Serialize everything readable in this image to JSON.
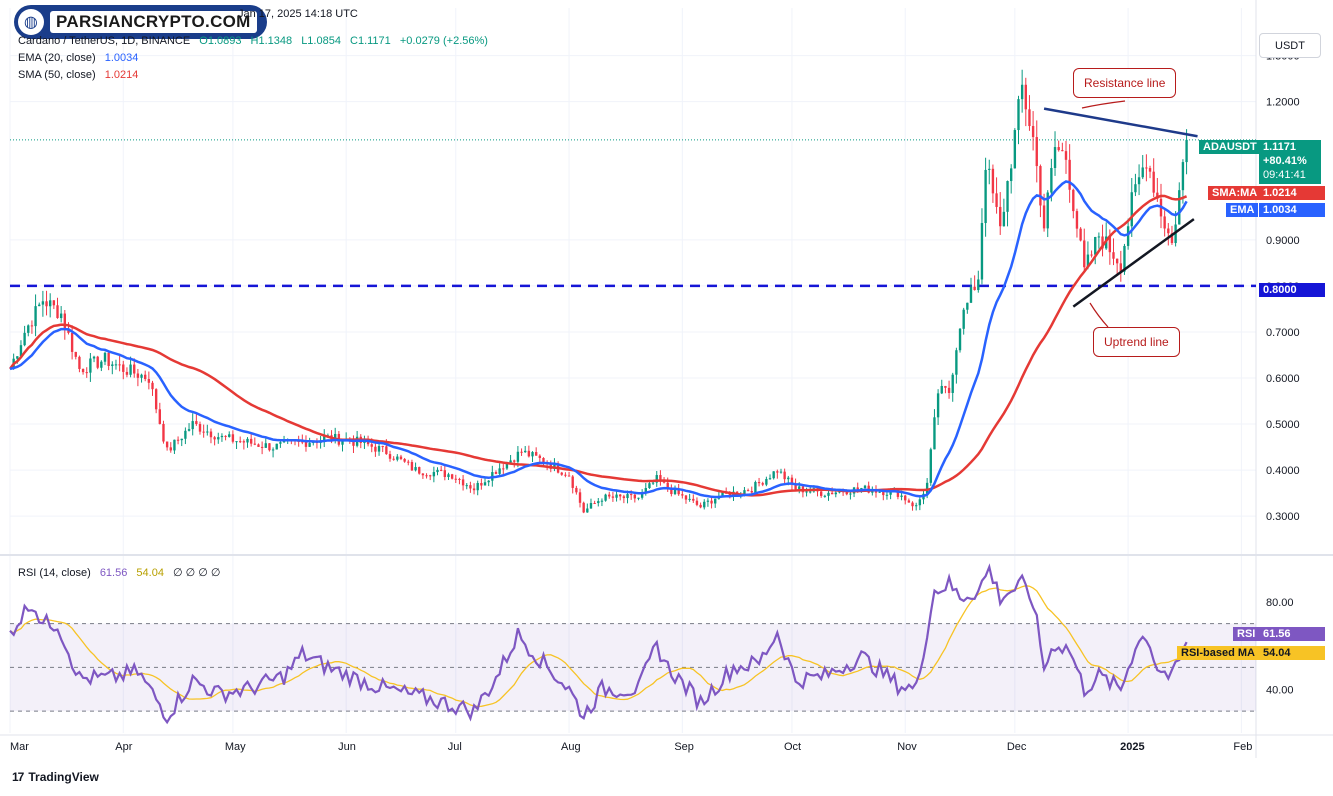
{
  "header": {
    "date_line": "Jan 17, 2025 14:18 UTC",
    "symbol_line": "Cardano / TetherUS, 1D, BINANCE",
    "open": "O1.0893",
    "high": "H1.1348",
    "low": "L1.0854",
    "close": "C1.1171",
    "change": "+0.0279 (+2.56%)",
    "ema_label": "EMA (20, close)",
    "ema_value": "1.0034",
    "sma_label": "SMA (50, close)",
    "sma_value": "1.0214",
    "rsi_label": "RSI (14, close)",
    "rsi_value": "61.56",
    "rsi_ma_value": "54.04",
    "rsi_extra": "∅ ∅ ∅ ∅"
  },
  "logo": {
    "text": "PARSIANCRYPTO.COM"
  },
  "footer": {
    "brand": "TradingView"
  },
  "scale": {
    "currency": "USDT"
  },
  "annotations": {
    "resistance": "Resistance line",
    "uptrend": "Uptrend line"
  },
  "price_tags": {
    "symbol": "ADAUSDT",
    "last": "1.1171",
    "change": "+80.41%",
    "countdown": "09:41:41",
    "sma_label": "SMA:MA",
    "sma_value": "1.0214",
    "ema_label": "EMA",
    "ema_value": "1.0034",
    "support": "0.8000",
    "rsi_label": "RSI",
    "rsi_value": "61.56",
    "rsi_ma_label": "RSI-based MA",
    "rsi_ma_value": "54.04"
  },
  "colors": {
    "up": "#089981",
    "down": "#f23645",
    "ema": "#2962ff",
    "sma": "#e53935",
    "rsi": "#7e57c2",
    "rsi_ma": "#f7c325",
    "support": "#1515d6",
    "trendline": "#1e3a8a",
    "annotation": "#b71c1c"
  },
  "chart_data": [
    {
      "type": "candlestick",
      "title": "Cardano / TetherUS, 1D, BINANCE",
      "ylim": [
        0.22,
        1.36
      ],
      "y_ticks": [
        "1.3000",
        "1.2000",
        "0.9000",
        "0.8000",
        "0.7000",
        "0.6000",
        "0.5000",
        "0.4000",
        "0.3000"
      ],
      "x_ticks": [
        "Mar",
        "Apr",
        "May",
        "Jun",
        "Jul",
        "Aug",
        "Sep",
        "Oct",
        "Nov",
        "Dec",
        "2025",
        "Feb"
      ],
      "close_anchors": [
        [
          "2024-03-01",
          0.62
        ],
        [
          "2024-03-05",
          0.7
        ],
        [
          "2024-03-10",
          0.77
        ],
        [
          "2024-03-15",
          0.74
        ],
        [
          "2024-03-20",
          0.62
        ],
        [
          "2024-03-27",
          0.64
        ],
        [
          "2024-04-01",
          0.62
        ],
        [
          "2024-04-08",
          0.6
        ],
        [
          "2024-04-13",
          0.44
        ],
        [
          "2024-04-20",
          0.5
        ],
        [
          "2024-04-28",
          0.47
        ],
        [
          "2024-05-05",
          0.46
        ],
        [
          "2024-05-12",
          0.45
        ],
        [
          "2024-05-20",
          0.46
        ],
        [
          "2024-05-27",
          0.47
        ],
        [
          "2024-06-05",
          0.46
        ],
        [
          "2024-06-12",
          0.44
        ],
        [
          "2024-06-20",
          0.4
        ],
        [
          "2024-06-30",
          0.39
        ],
        [
          "2024-07-06",
          0.36
        ],
        [
          "2024-07-12",
          0.4
        ],
        [
          "2024-07-19",
          0.44
        ],
        [
          "2024-07-25",
          0.42
        ],
        [
          "2024-08-01",
          0.39
        ],
        [
          "2024-08-05",
          0.31
        ],
        [
          "2024-08-10",
          0.34
        ],
        [
          "2024-08-20",
          0.34
        ],
        [
          "2024-08-25",
          0.38
        ],
        [
          "2024-08-28",
          0.36
        ],
        [
          "2024-09-06",
          0.32
        ],
        [
          "2024-09-10",
          0.34
        ],
        [
          "2024-09-20",
          0.36
        ],
        [
          "2024-09-27",
          0.4
        ],
        [
          "2024-10-02",
          0.36
        ],
        [
          "2024-10-10",
          0.35
        ],
        [
          "2024-10-20",
          0.36
        ],
        [
          "2024-10-30",
          0.35
        ],
        [
          "2024-11-04",
          0.32
        ],
        [
          "2024-11-07",
          0.37
        ],
        [
          "2024-11-10",
          0.57
        ],
        [
          "2024-11-13",
          0.57
        ],
        [
          "2024-11-16",
          0.72
        ],
        [
          "2024-11-21",
          0.82
        ],
        [
          "2024-11-23",
          1.07
        ],
        [
          "2024-11-27",
          0.92
        ],
        [
          "2024-12-03",
          1.23
        ],
        [
          "2024-12-06",
          1.12
        ],
        [
          "2024-12-09",
          0.93
        ],
        [
          "2024-12-12",
          1.1
        ],
        [
          "2024-12-15",
          1.08
        ],
        [
          "2024-12-20",
          0.83
        ],
        [
          "2024-12-24",
          0.91
        ],
        [
          "2024-12-30",
          0.85
        ],
        [
          "2025-01-02",
          0.98
        ],
        [
          "2025-01-06",
          1.08
        ],
        [
          "2025-01-10",
          0.96
        ],
        [
          "2025-01-13",
          0.89
        ],
        [
          "2025-01-17",
          1.1171
        ]
      ],
      "ema20_last": 1.0034,
      "sma50_last": 1.0214,
      "support_level": 0.8,
      "resistance_line": [
        [
          "2024-12-09",
          1.185
        ],
        [
          "2025-01-20",
          1.125
        ]
      ],
      "uptrend_line": [
        [
          "2024-12-17",
          0.755
        ],
        [
          "2025-01-19",
          0.945
        ]
      ],
      "last_close": 1.1171
    },
    {
      "type": "line",
      "title": "RSI (14, close)",
      "ylim": [
        20,
        100
      ],
      "y_ticks": [
        "80.00",
        "40.00"
      ],
      "bands": {
        "upper": 70,
        "middle": 50,
        "lower": 30
      },
      "rsi_anchors": [
        [
          "2024-03-01",
          66
        ],
        [
          "2024-03-07",
          80
        ],
        [
          "2024-03-10",
          70
        ],
        [
          "2024-03-14",
          70
        ],
        [
          "2024-03-20",
          45
        ],
        [
          "2024-03-28",
          45
        ],
        [
          "2024-04-05",
          48
        ],
        [
          "2024-04-13",
          28
        ],
        [
          "2024-04-20",
          44
        ],
        [
          "2024-04-27",
          38
        ],
        [
          "2024-05-05",
          40
        ],
        [
          "2024-05-15",
          46
        ],
        [
          "2024-05-20",
          56
        ],
        [
          "2024-05-27",
          50
        ],
        [
          "2024-06-05",
          44
        ],
        [
          "2024-06-12",
          40
        ],
        [
          "2024-06-25",
          35
        ],
        [
          "2024-07-06",
          30
        ],
        [
          "2024-07-12",
          45
        ],
        [
          "2024-07-18",
          65
        ],
        [
          "2024-07-25",
          52
        ],
        [
          "2024-08-01",
          40
        ],
        [
          "2024-08-05",
          28
        ],
        [
          "2024-08-10",
          40
        ],
        [
          "2024-08-20",
          40
        ],
        [
          "2024-08-25",
          60
        ],
        [
          "2024-08-28",
          50
        ],
        [
          "2024-09-06",
          34
        ],
        [
          "2024-09-15",
          50
        ],
        [
          "2024-09-22",
          52
        ],
        [
          "2024-09-27",
          66
        ],
        [
          "2024-10-02",
          44
        ],
        [
          "2024-10-10",
          46
        ],
        [
          "2024-10-20",
          55
        ],
        [
          "2024-10-30",
          42
        ],
        [
          "2024-11-04",
          40
        ],
        [
          "2024-11-09",
          85
        ],
        [
          "2024-11-13",
          88
        ],
        [
          "2024-11-16",
          82
        ],
        [
          "2024-11-21",
          85
        ],
        [
          "2024-11-24",
          95
        ],
        [
          "2024-11-27",
          82
        ],
        [
          "2024-12-03",
          88
        ],
        [
          "2024-12-06",
          80
        ],
        [
          "2024-12-09",
          50
        ],
        [
          "2024-12-12",
          61
        ],
        [
          "2024-12-16",
          58
        ],
        [
          "2024-12-20",
          40
        ],
        [
          "2024-12-24",
          46
        ],
        [
          "2024-12-30",
          40
        ],
        [
          "2025-01-03",
          60
        ],
        [
          "2025-01-06",
          65
        ],
        [
          "2025-01-09",
          50
        ],
        [
          "2025-01-13",
          45
        ],
        [
          "2025-01-17",
          61.56
        ]
      ],
      "rsi_last": 61.56,
      "rsi_ma_last": 54.04
    }
  ]
}
